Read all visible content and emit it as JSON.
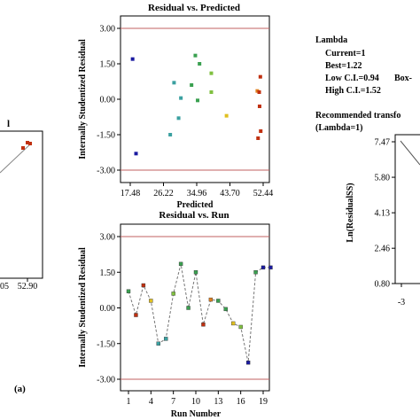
{
  "caption_label": "(a)",
  "left_fragment": {
    "title_fragment": "l",
    "x_tick_labels": [
      "05",
      "52.90"
    ]
  },
  "lambda_box": {
    "heading": "Lambda",
    "current": "Current=1",
    "best": "Best=1.22",
    "low_ci": "Low C.I.=0.94",
    "high_ci": "High C.I.=1.52",
    "box_cut": "Box-",
    "recommended_1": "Recommended transfo",
    "recommended_2": "(Lambda=1)"
  },
  "chart_data": [
    {
      "type": "scatter",
      "title": "Residual vs. Predicted",
      "xlabel": "Predicted",
      "ylabel": "Internally Studentized Residual",
      "xlim": [
        17.48,
        52.44
      ],
      "ylim": [
        -3.0,
        3.0
      ],
      "x_ticks": [
        "17.48",
        "26.22",
        "34.96",
        "43.70",
        "52.44"
      ],
      "y_ticks": [
        "3.00",
        "1.50",
        "0.00",
        "-1.50",
        "-3.00"
      ],
      "reference_lines_y": [
        3.0,
        -3.0
      ],
      "points": [
        {
          "x": 18.1,
          "y": 1.7,
          "color": "#1a1aa0"
        },
        {
          "x": 19.0,
          "y": -2.3,
          "color": "#1a1aa0"
        },
        {
          "x": 28.0,
          "y": -1.5,
          "color": "#3aa0a0"
        },
        {
          "x": 29.0,
          "y": 0.7,
          "color": "#3aa0a0"
        },
        {
          "x": 30.2,
          "y": -0.8,
          "color": "#3aa0a0"
        },
        {
          "x": 30.8,
          "y": 0.05,
          "color": "#3aa0a0"
        },
        {
          "x": 33.6,
          "y": 0.6,
          "color": "#3aa050"
        },
        {
          "x": 34.6,
          "y": 1.85,
          "color": "#3aa050"
        },
        {
          "x": 35.2,
          "y": -0.05,
          "color": "#3aa050"
        },
        {
          "x": 35.7,
          "y": 1.5,
          "color": "#3aa050"
        },
        {
          "x": 38.8,
          "y": 1.1,
          "color": "#80c040"
        },
        {
          "x": 38.8,
          "y": 0.3,
          "color": "#80c040"
        },
        {
          "x": 42.8,
          "y": -0.7,
          "color": "#e0c020"
        },
        {
          "x": 50.9,
          "y": 0.35,
          "color": "#e08020"
        },
        {
          "x": 51.1,
          "y": -1.65,
          "color": "#c03010"
        },
        {
          "x": 51.4,
          "y": 0.3,
          "color": "#c03010"
        },
        {
          "x": 51.5,
          "y": -0.3,
          "color": "#c03010"
        },
        {
          "x": 51.7,
          "y": 0.95,
          "color": "#c03010"
        },
        {
          "x": 51.8,
          "y": -1.35,
          "color": "#c03010"
        }
      ]
    },
    {
      "type": "line",
      "title": "Residual vs. Run",
      "xlabel": "Run Number",
      "ylabel": "Internally Studentized Residual",
      "xlim": [
        0.5,
        20.5
      ],
      "ylim": [
        -3.0,
        3.0
      ],
      "x_ticks": [
        "1",
        "4",
        "7",
        "10",
        "13",
        "16",
        "19"
      ],
      "y_ticks": [
        "3.00",
        "1.50",
        "0.00",
        "-1.50",
        "-3.00"
      ],
      "reference_lines_y": [
        3.0,
        -3.0
      ],
      "x": [
        1,
        2,
        3,
        4,
        5,
        6,
        7,
        8,
        9,
        10,
        11,
        12,
        13,
        14,
        15,
        16,
        17,
        18,
        19,
        20
      ],
      "y": [
        0.7,
        -0.3,
        0.95,
        0.3,
        -1.5,
        -1.3,
        0.6,
        1.85,
        0.0,
        1.5,
        -0.7,
        0.35,
        0.3,
        -0.05,
        -0.65,
        -0.8,
        -2.3,
        1.5,
        1.7,
        1.7
      ],
      "colors": [
        "#3aa050",
        "#c03010",
        "#c03010",
        "#e0c020",
        "#3aa0a0",
        "#3aa0a0",
        "#80c040",
        "#3aa050",
        "#3aa050",
        "#3aa050",
        "#c03010",
        "#e08020",
        "#3aa050",
        "#3aa050",
        "#e0c020",
        "#80c040",
        "#1a1aa0",
        "#3aa050",
        "#1a1aa0",
        "#1a1aa0"
      ]
    },
    {
      "type": "line",
      "title": "",
      "xlabel": "",
      "ylabel": "Ln(ResidualSS)",
      "ylim": [
        0.8,
        7.47
      ],
      "x_ticks": [
        "-3"
      ],
      "y_ticks": [
        "7.47",
        "5.80",
        "4.13",
        "2.46",
        "0.80"
      ]
    }
  ]
}
